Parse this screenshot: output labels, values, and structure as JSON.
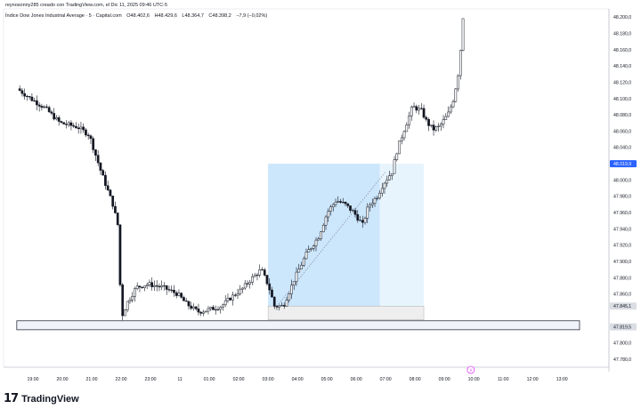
{
  "header": {
    "caption": "reynosonny285 creado con TradingView.com, el Dic 11, 2025 09:46 UTC-5"
  },
  "legend": {
    "title": "Índice Dow Jones Industrial Average · 5 · Capital.com",
    "open": "O48.402,6",
    "high": "H48.429,6",
    "low": "L48.364,7",
    "close": "C48.398,2",
    "change": "−7,9 (−0,02%)"
  },
  "footer": {
    "logo_icon": "tradingview-logo-icon",
    "brand": "TradingView"
  },
  "colors": {
    "candle": "#131722",
    "position_zone": "#bbdefb",
    "position_zone_faded": "#e3f2fd",
    "current_price_label": "#2962ff",
    "zone_box_border": "#131722",
    "zone_box_fill": "#f0f3fa"
  },
  "chart_data": {
    "type": "candlestick",
    "x_ticks": [
      "19:00",
      "20:00",
      "21:00",
      "22:00",
      "23:00",
      "11",
      "01:00",
      "02:00",
      "03:00",
      "04:00",
      "05:00",
      "06:00",
      "07:00",
      "08:00",
      "09:00",
      "10:00",
      "11:00",
      "12:00",
      "13:00"
    ],
    "y_ticks": [
      "48.200,0",
      "48.180,0",
      "48.160,0",
      "48.140,0",
      "48.120,0",
      "48.100,0",
      "48.080,0",
      "48.060,0",
      "48.040,0",
      "48.000,0",
      "47.980,0",
      "47.960,0",
      "47.940,0",
      "47.920,0",
      "47.900,0",
      "47.880,0",
      "47.860,0",
      "47.800,0",
      "47.780,0"
    ],
    "ylim": [
      47770,
      48210
    ],
    "current_price": {
      "label": "48.019,9",
      "value": 48019.9
    },
    "price_labels": [
      {
        "label": "47.845,1",
        "value": 47845.1
      },
      {
        "label": "47.819,5",
        "value": 47819.5
      }
    ],
    "price_path": [
      [
        18.55,
        48112
      ],
      [
        19.0,
        48100
      ],
      [
        19.5,
        48088
      ],
      [
        20.0,
        48070
      ],
      [
        20.6,
        48065
      ],
      [
        21.0,
        48055
      ],
      [
        21.4,
        48010
      ],
      [
        21.8,
        47970
      ],
      [
        22.0,
        47940
      ],
      [
        22.08,
        47830
      ],
      [
        22.3,
        47850
      ],
      [
        22.6,
        47868
      ],
      [
        23.0,
        47872
      ],
      [
        23.5,
        47868
      ],
      [
        24.0,
        47860
      ],
      [
        24.3,
        47848
      ],
      [
        24.7,
        47838
      ],
      [
        25.0,
        47840
      ],
      [
        25.5,
        47845
      ],
      [
        25.8,
        47855
      ],
      [
        26.2,
        47866
      ],
      [
        26.5,
        47878
      ],
      [
        26.85,
        47890
      ],
      [
        27.1,
        47870
      ],
      [
        27.3,
        47845
      ],
      [
        27.6,
        47845
      ],
      [
        28.0,
        47880
      ],
      [
        28.4,
        47910
      ],
      [
        28.8,
        47930
      ],
      [
        29.1,
        47960
      ],
      [
        29.4,
        47975
      ],
      [
        29.7,
        47970
      ],
      [
        30.0,
        47960
      ],
      [
        30.3,
        47945
      ],
      [
        30.5,
        47968
      ],
      [
        30.8,
        47980
      ],
      [
        31.0,
        47995
      ],
      [
        31.3,
        48010
      ],
      [
        31.5,
        48040
      ],
      [
        31.7,
        48060
      ],
      [
        32.0,
        48090
      ],
      [
        32.3,
        48085
      ],
      [
        32.5,
        48070
      ],
      [
        32.7,
        48062
      ],
      [
        32.9,
        48065
      ],
      [
        33.2,
        48080
      ],
      [
        33.4,
        48100
      ],
      [
        33.6,
        48140
      ],
      [
        33.7,
        48200
      ]
    ],
    "position": {
      "x_start": 27.0,
      "x_entry_end": 30.8,
      "x_end": 32.3,
      "top": 48019.9,
      "entry": 47845.1
    },
    "zone_box": {
      "x_start": 18.45,
      "x_end": 37.6,
      "top": 47827,
      "bottom": 47816
    },
    "trend_line": {
      "from": [
        27.3,
        47845
      ],
      "to": [
        31.0,
        48010
      ]
    }
  }
}
